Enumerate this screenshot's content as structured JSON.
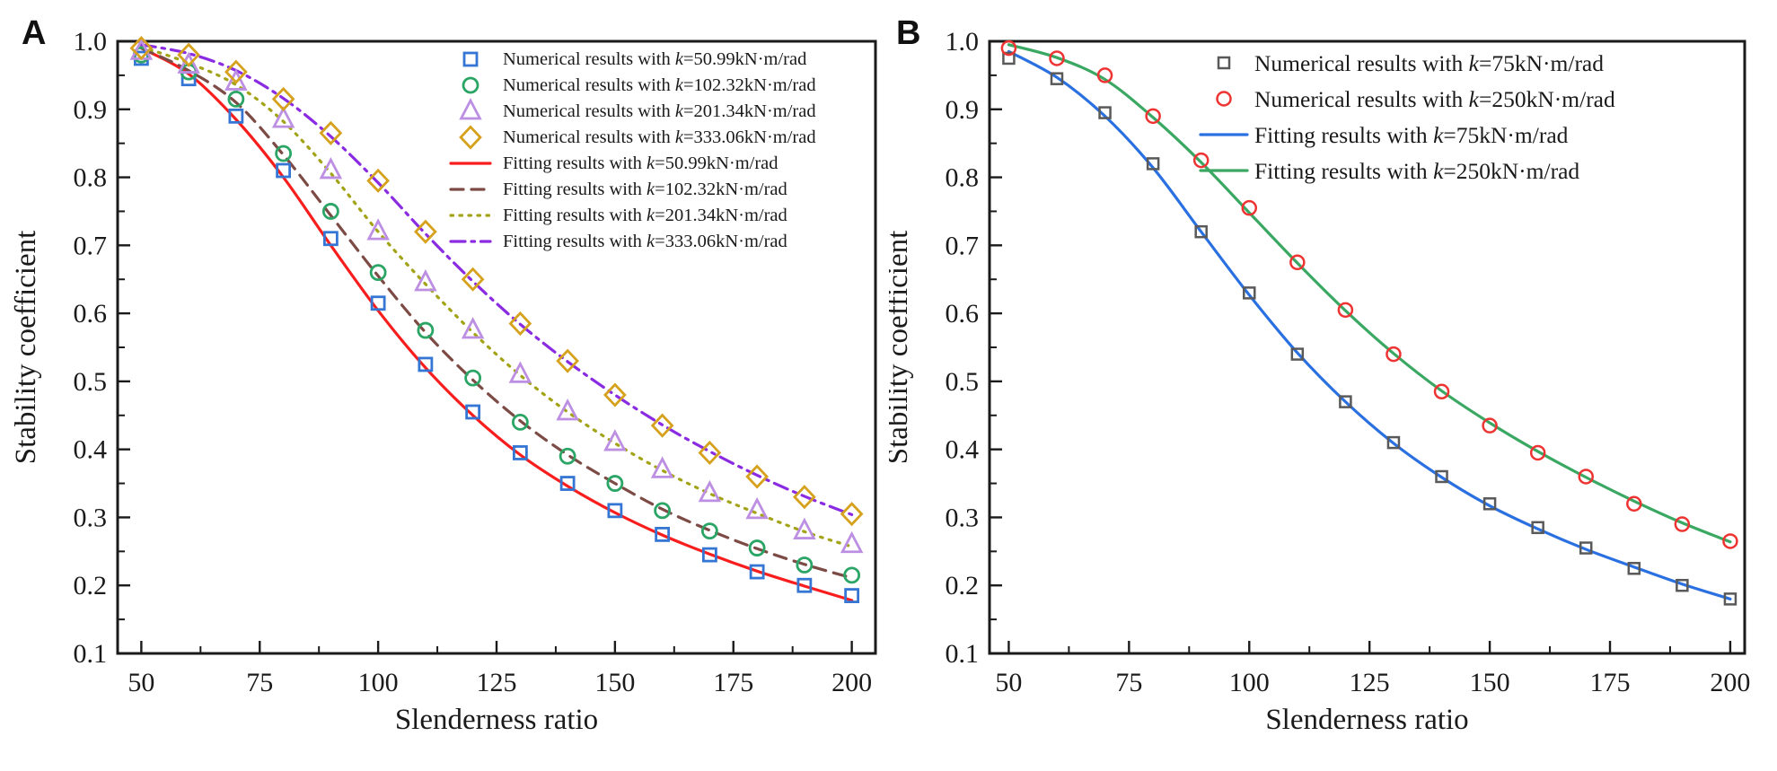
{
  "figure": {
    "background": "#ffffff",
    "text_color": "#1a1a1a"
  },
  "panel_labels": {
    "a": "A",
    "b": "B"
  },
  "chart_data": [
    {
      "type": "line",
      "panel": "A",
      "title": "",
      "xlabel": "Slenderness ratio",
      "ylabel": "Stability coefficient",
      "xlim": [
        45,
        205
      ],
      "ylim": [
        0.1,
        1.0
      ],
      "x_ticks": [
        50,
        75,
        100,
        125,
        150,
        175,
        200
      ],
      "x_minor_ticks": [
        62.5,
        87.5,
        112.5,
        137.5,
        162.5,
        187.5
      ],
      "y_ticks": [
        0.1,
        0.2,
        0.3,
        0.4,
        0.5,
        0.6,
        0.7,
        0.8,
        0.9,
        1.0
      ],
      "y_minor_ticks": [
        0.15,
        0.25,
        0.35,
        0.45,
        0.55,
        0.65,
        0.75,
        0.85,
        0.95
      ],
      "grid": false,
      "legend_position": "upper right",
      "x": [
        50,
        60,
        70,
        80,
        90,
        100,
        110,
        120,
        130,
        140,
        150,
        160,
        170,
        180,
        190,
        200
      ],
      "series": [
        {
          "name": "Numerical results with k=50.99kN·m/rad",
          "kind": "scatter",
          "marker": "square",
          "color": "#3575d3",
          "values": [
            0.975,
            0.945,
            0.89,
            0.81,
            0.71,
            0.615,
            0.525,
            0.455,
            0.395,
            0.35,
            0.31,
            0.275,
            0.245,
            0.22,
            0.2,
            0.185
          ]
        },
        {
          "name": "Numerical results with k=102.32kN·m/rad",
          "kind": "scatter",
          "marker": "circle",
          "color": "#2aa565",
          "values": [
            0.98,
            0.955,
            0.915,
            0.835,
            0.75,
            0.66,
            0.575,
            0.505,
            0.44,
            0.39,
            0.35,
            0.31,
            0.28,
            0.255,
            0.23,
            0.215
          ]
        },
        {
          "name": "Numerical results with k=201.34kN·m/rad",
          "kind": "scatter",
          "marker": "triangle",
          "color": "#bd8fe3",
          "values": [
            0.985,
            0.965,
            0.94,
            0.885,
            0.81,
            0.72,
            0.645,
            0.575,
            0.51,
            0.455,
            0.41,
            0.37,
            0.335,
            0.31,
            0.28,
            0.26
          ]
        },
        {
          "name": "Numerical results with k=333.06kN·m/rad",
          "kind": "scatter",
          "marker": "diamond",
          "color": "#d6a11c",
          "values": [
            0.99,
            0.98,
            0.955,
            0.915,
            0.865,
            0.795,
            0.72,
            0.65,
            0.585,
            0.53,
            0.48,
            0.435,
            0.395,
            0.36,
            0.33,
            0.305
          ]
        },
        {
          "name": "Fitting results with k=50.99kN·m/rad",
          "kind": "line",
          "dash": "solid",
          "color": "#f81e1e",
          "values": [
            0.99,
            0.952,
            0.885,
            0.8,
            0.7,
            0.604,
            0.52,
            0.45,
            0.392,
            0.346,
            0.307,
            0.274,
            0.246,
            0.221,
            0.199,
            0.178
          ]
        },
        {
          "name": "Fitting results with k=102.32kN·m/rad",
          "kind": "line",
          "dash": "dashed",
          "color": "#7d4b45",
          "values": [
            0.99,
            0.957,
            0.91,
            0.833,
            0.744,
            0.655,
            0.572,
            0.502,
            0.442,
            0.392,
            0.35,
            0.312,
            0.281,
            0.254,
            0.231,
            0.211
          ]
        },
        {
          "name": "Fitting results with k=201.34kN·m/rad",
          "kind": "line",
          "dash": "dotted",
          "color": "#a3a318",
          "values": [
            0.992,
            0.968,
            0.936,
            0.882,
            0.806,
            0.72,
            0.643,
            0.572,
            0.509,
            0.455,
            0.409,
            0.369,
            0.335,
            0.306,
            0.279,
            0.257
          ]
        },
        {
          "name": "Fitting results with k=333.06kN·m/rad",
          "kind": "line",
          "dash": "dashdot",
          "color": "#8a2be2",
          "values": [
            0.995,
            0.982,
            0.957,
            0.916,
            0.86,
            0.792,
            0.717,
            0.647,
            0.584,
            0.529,
            0.48,
            0.436,
            0.397,
            0.362,
            0.331,
            0.304
          ]
        }
      ]
    },
    {
      "type": "line",
      "panel": "B",
      "title": "",
      "xlabel": "Slenderness ratio",
      "ylabel": "Stability coefficient",
      "xlim": [
        46,
        203
      ],
      "ylim": [
        0.1,
        1.0
      ],
      "x_ticks": [
        50,
        75,
        100,
        125,
        150,
        175,
        200
      ],
      "x_minor_ticks": [
        62.5,
        87.5,
        112.5,
        137.5,
        162.5,
        187.5
      ],
      "y_ticks": [
        0.1,
        0.2,
        0.3,
        0.4,
        0.5,
        0.6,
        0.7,
        0.8,
        0.9,
        1.0
      ],
      "y_minor_ticks": [
        0.15,
        0.25,
        0.35,
        0.45,
        0.55,
        0.65,
        0.75,
        0.85,
        0.95
      ],
      "grid": false,
      "legend_position": "upper right",
      "x": [
        50,
        60,
        70,
        80,
        90,
        100,
        110,
        120,
        130,
        140,
        150,
        160,
        170,
        180,
        190,
        200
      ],
      "series": [
        {
          "name": "Numerical results with k=75kN·m/rad",
          "kind": "scatter",
          "marker": "square",
          "color": "#595959",
          "values": [
            0.975,
            0.945,
            0.895,
            0.82,
            0.72,
            0.63,
            0.54,
            0.47,
            0.41,
            0.36,
            0.32,
            0.285,
            0.255,
            0.225,
            0.2,
            0.18
          ]
        },
        {
          "name": "Numerical results with k=250kN·m/rad",
          "kind": "scatter",
          "marker": "circle",
          "color": "#ee3432",
          "values": [
            0.99,
            0.975,
            0.95,
            0.89,
            0.825,
            0.755,
            0.675,
            0.605,
            0.54,
            0.485,
            0.435,
            0.395,
            0.36,
            0.32,
            0.29,
            0.265
          ]
        },
        {
          "name": "Fitting results with k=75kN·m/rad",
          "kind": "line",
          "dash": "solid",
          "color": "#2a70e0",
          "values": [
            0.985,
            0.947,
            0.89,
            0.814,
            0.72,
            0.627,
            0.542,
            0.47,
            0.409,
            0.359,
            0.317,
            0.283,
            0.253,
            0.227,
            0.202,
            0.18
          ]
        },
        {
          "name": "Fitting results with k=250kN·m/rad",
          "kind": "line",
          "dash": "solid",
          "color": "#3aa862",
          "values": [
            0.995,
            0.976,
            0.944,
            0.888,
            0.822,
            0.748,
            0.674,
            0.604,
            0.541,
            0.486,
            0.439,
            0.397,
            0.359,
            0.324,
            0.292,
            0.264
          ]
        }
      ]
    }
  ]
}
